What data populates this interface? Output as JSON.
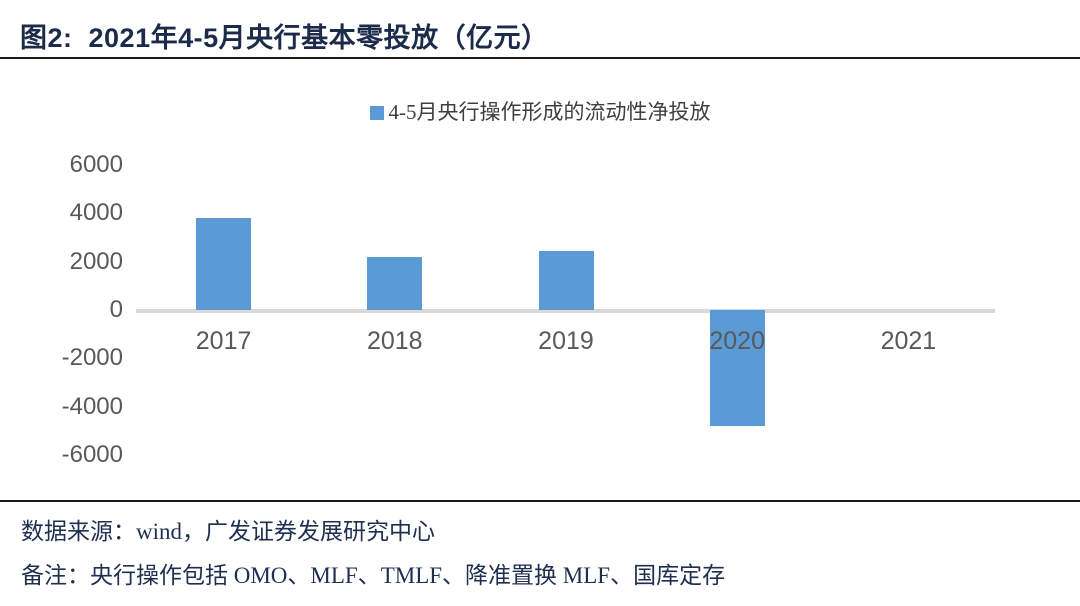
{
  "header": {
    "figure_label": "图2:",
    "title": "2021年4-5月央行基本零投放（亿元）"
  },
  "chart_data": {
    "type": "bar",
    "title": "2021年4-5月央行基本零投放（亿元）",
    "legend": [
      "4-5月央行操作形成的流动性净投放"
    ],
    "legend_position": "top-center",
    "categories": [
      "2017",
      "2018",
      "2019",
      "2020",
      "2021"
    ],
    "values": [
      3800,
      2200,
      2450,
      -4800,
      0
    ],
    "yticks": [
      6000,
      4000,
      2000,
      0,
      -2000,
      -4000,
      -6000
    ],
    "ylim": [
      -6000,
      6000
    ],
    "grid": false,
    "bar_color": "#5B9BD5"
  },
  "footer": {
    "source": "数据来源：wind，广发证券发展研究中心",
    "note": "备注：央行操作包括 OMO、MLF、TMLF、降准置换 MLF、国库定存"
  },
  "colors": {
    "bar": "#5B9BD5",
    "title_text": "#1C2B4A",
    "footer_text": "#1F2F4F",
    "axis_text": "#595959",
    "legend_text": "#3F3F3F",
    "zero_line": "#D9D9D9",
    "divider": "#1A1A1A"
  }
}
